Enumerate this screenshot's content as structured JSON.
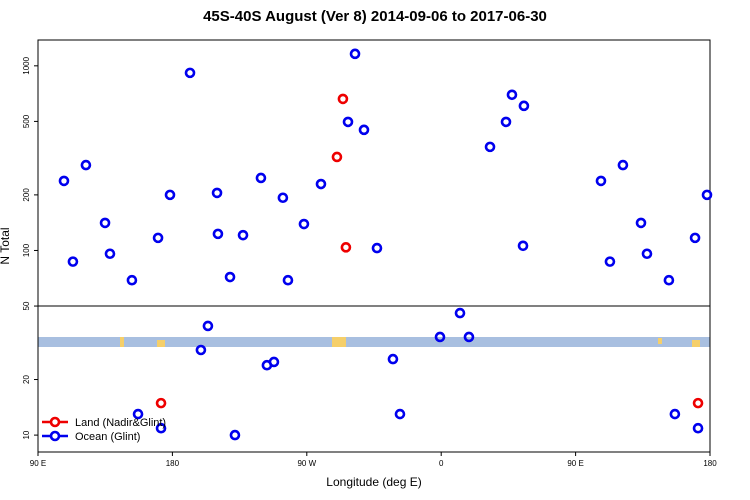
{
  "chart_data": {
    "type": "scatter",
    "title": "45S-40S August (Ver 8)   2014-09-06 to 2017-06-30",
    "xlabel": "Longitude (deg E)",
    "ylabel": "N Total",
    "xlim": [
      90,
      540
    ],
    "ylim": [
      8.1,
      1380
    ],
    "log_y": true,
    "legend": "lower left",
    "xticks": [
      {
        "value": 90,
        "label": "90 E"
      },
      180,
      {
        "value": 270,
        "label": "90 W"
      },
      {
        "value": 360,
        "label": "0"
      },
      {
        "value": 450,
        "label": "90 E"
      },
      {
        "value": 540,
        "label": "180"
      }
    ],
    "yticks": [
      10,
      20,
      50,
      100,
      200,
      500,
      1000
    ],
    "series": [
      {
        "name": "Land (Nadir&Glint)",
        "color": "#ee0000",
        "x": [
          172.4,
          290.2,
          294.2,
          296.2,
          532
        ],
        "values": [
          14.9,
          321,
          662,
          104,
          14.9
        ]
      },
      {
        "name": "Ocean (Glint)",
        "color": "#0000ee",
        "x": [
          107.4,
          113.4,
          122.1,
          134.9,
          138.2,
          152.9,
          157,
          170.4,
          172.4,
          178.4,
          191.8,
          199.1,
          203.8,
          209.9,
          210.5,
          218.6,
          221.9,
          227.3,
          239.3,
          243.3,
          248,
          254,
          257.4,
          268.1,
          279.5,
          297.6,
          302.3,
          308.3,
          317,
          327.7,
          332.4,
          359.2,
          372.6,
          378.6,
          392.7,
          403.4,
          407.4,
          415.4,
          414.8,
          467,
          473,
          481.7,
          493.8,
          497.8,
          512.5,
          516.5,
          530,
          532,
          538
        ],
        "values": [
          238,
          87,
          290,
          141,
          96,
          69,
          13,
          117,
          10.9,
          200,
          916,
          28.9,
          39,
          205,
          123,
          71.8,
          10,
          121,
          247,
          23.9,
          24.9,
          193,
          69,
          139,
          229,
          497,
          1161,
          450,
          103,
          25.8,
          13,
          34,
          45.8,
          34,
          364,
          497,
          697,
          607,
          106,
          238,
          87,
          290,
          141,
          96,
          69,
          13,
          117,
          10.9,
          200
        ]
      }
    ]
  }
}
